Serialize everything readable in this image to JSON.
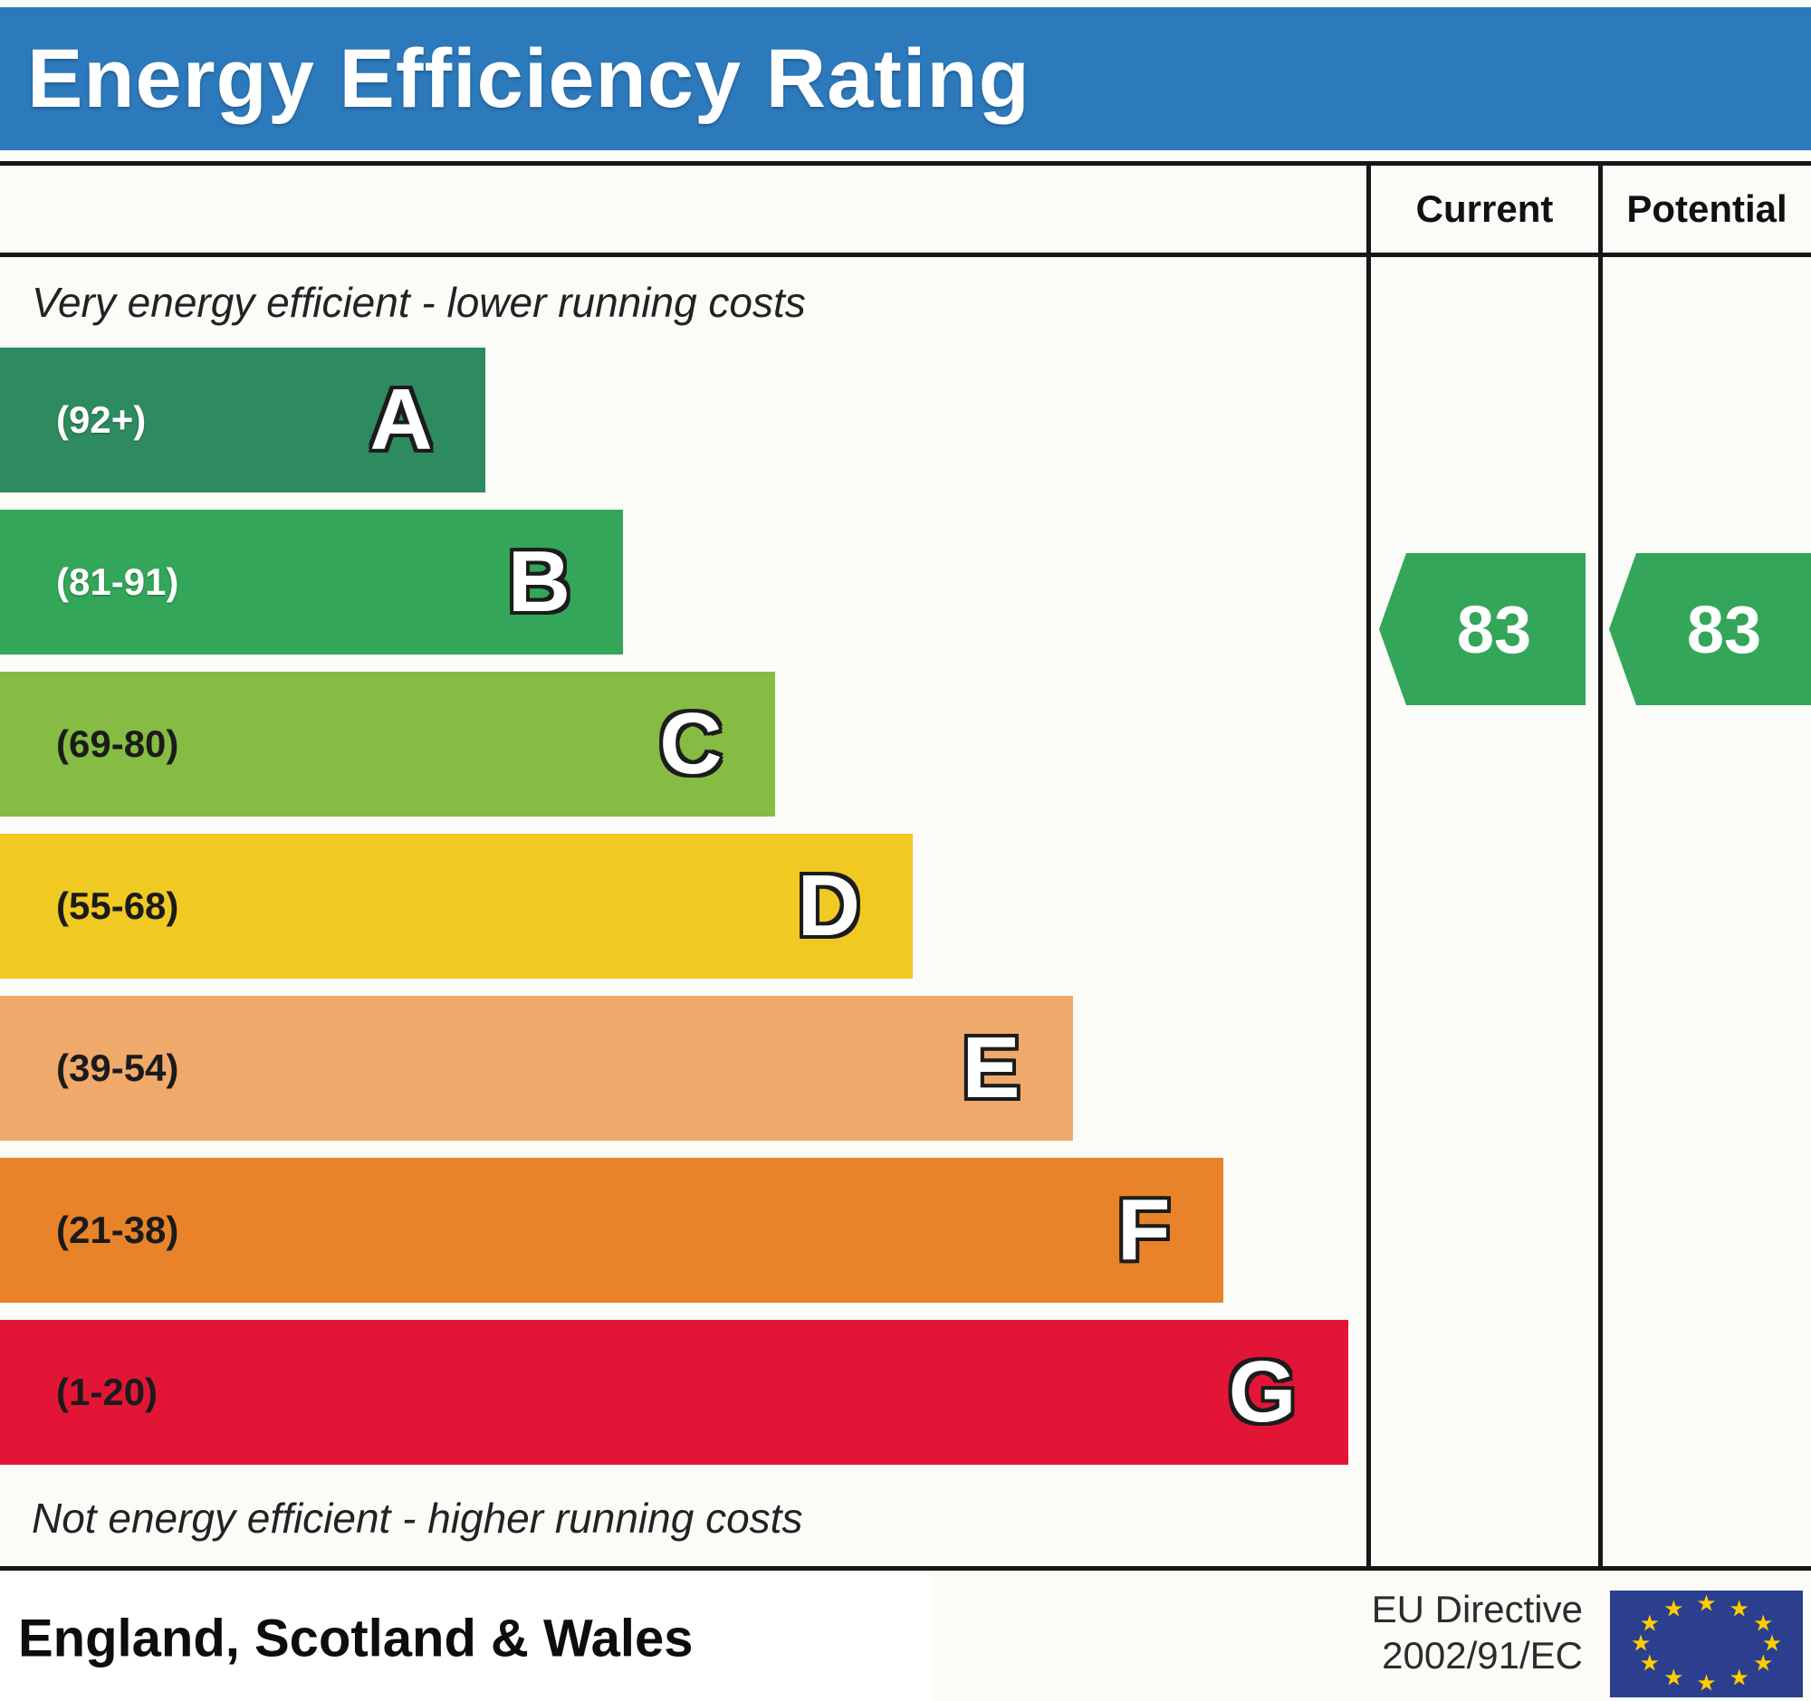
{
  "title": "Energy Efficiency Rating",
  "table": {
    "current_label": "Current",
    "potential_label": "Potential"
  },
  "chart": {
    "top_caption": "Very energy efficient - lower running costs",
    "bottom_caption": "Not energy efficient - higher running costs"
  },
  "chart_data": {
    "type": "bar",
    "title": "Energy Efficiency Rating",
    "bands": [
      {
        "letter": "A",
        "range": "(92+)",
        "min": 92,
        "max": 100,
        "color": "#2E8B5F",
        "width_pct": 35.5,
        "text_color": "#ffffff"
      },
      {
        "letter": "B",
        "range": "(81-91)",
        "min": 81,
        "max": 91,
        "color": "#33A65A",
        "width_pct": 45.6,
        "text_color": "#ffffff"
      },
      {
        "letter": "C",
        "range": "(69-80)",
        "min": 69,
        "max": 80,
        "color": "#86BC43",
        "width_pct": 56.7,
        "text_color": "#1b1b1b"
      },
      {
        "letter": "D",
        "range": "(55-68)",
        "min": 55,
        "max": 68,
        "color": "#F0C923",
        "width_pct": 66.8,
        "text_color": "#1b1b1b"
      },
      {
        "letter": "E",
        "range": "(39-54)",
        "min": 39,
        "max": 54,
        "color": "#EFA96B",
        "width_pct": 78.5,
        "text_color": "#1b1b1b"
      },
      {
        "letter": "F",
        "range": "(21-38)",
        "min": 21,
        "max": 38,
        "color": "#E8832A",
        "width_pct": 89.5,
        "text_color": "#1b1b1b"
      },
      {
        "letter": "G",
        "range": "(1-20)",
        "min": 1,
        "max": 20,
        "color": "#E31537",
        "width_pct": 98.7,
        "text_color": "#1b1b1b"
      }
    ],
    "ratings": {
      "current": {
        "value": "83",
        "band": "B",
        "color": "#33A65A"
      },
      "potential": {
        "value": "83",
        "band": "B",
        "color": "#33A65A"
      }
    },
    "axis_note": "bands run top (best) to bottom (worst); bar length grows as rating worsens"
  },
  "footer": {
    "region": "England, Scotland & Wales",
    "eu_directive": {
      "line1": "EU Directive",
      "line2": "2002/91/EC"
    },
    "eu_flag": {
      "background": "#2B3F8E",
      "star_color": "#FFCC00",
      "star_count": 12,
      "star_glyph": "★"
    }
  },
  "colors": {
    "title_bar": "#2C79BC",
    "border": "#161616",
    "page_background": "#fbfbf8"
  }
}
